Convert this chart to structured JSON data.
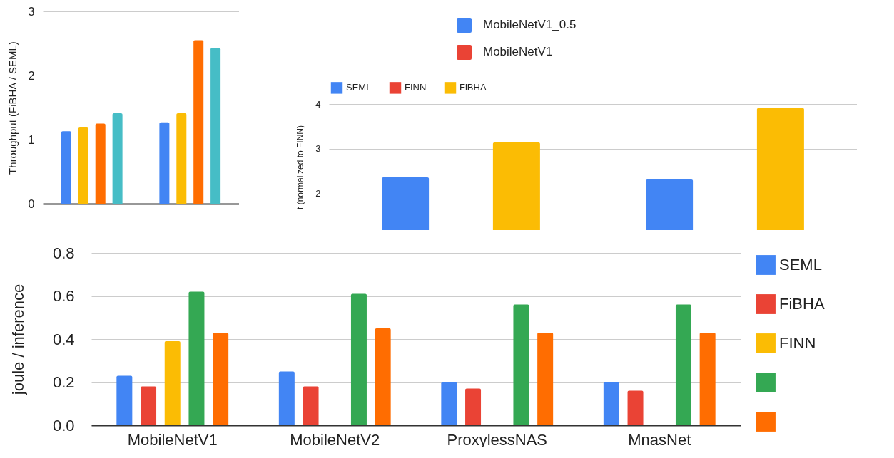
{
  "chart_data": [
    {
      "type": "bar",
      "ylabel": "Throughput (FiBHA / SEML)",
      "categories": [
        null,
        null
      ],
      "series": [
        {
          "color": "#4285f4",
          "values": [
            1.13,
            1.27
          ]
        },
        {
          "color": "#fbbc04",
          "values": [
            1.19,
            1.41
          ]
        },
        {
          "color": "#ff6d01",
          "values": [
            1.25,
            2.55
          ]
        },
        {
          "color": "#46bdc6",
          "values": [
            1.41,
            2.43
          ]
        }
      ],
      "ylim": [
        0,
        3
      ],
      "yticks": [
        0,
        1,
        2,
        3
      ],
      "grid": "y"
    },
    {
      "type": "other",
      "annotations": [
        "MobileNetV1_0.5",
        "MobileNetV1"
      ],
      "colors": [
        "#4285f4",
        "#ea4335"
      ]
    },
    {
      "type": "bar",
      "ylabel": "t (normalized to FINN)",
      "categories": [
        null,
        null
      ],
      "series": [
        {
          "name": "SEML",
          "color": "#4285f4",
          "values": [
            2.36,
            2.31
          ]
        },
        {
          "name": "FINN",
          "color": "#ea4335",
          "values": [
            null,
            null
          ]
        },
        {
          "name": "FiBHA",
          "color": "#fbbc04",
          "values": [
            3.14,
            3.91
          ]
        }
      ],
      "ylim": [
        1.18,
        4
      ],
      "yticks": [
        2,
        3,
        4
      ],
      "grid": "y",
      "legend": "top",
      "tick_labels": "y"
    },
    {
      "type": "bar",
      "ylabel": "joule / inference",
      "categories": [
        "MobileNetV1",
        "MobileNetV2",
        "ProxylessNAS",
        "MnasNet"
      ],
      "series": [
        {
          "name": "SEML",
          "color": "#4285f4",
          "values": [
            0.23,
            0.25,
            0.2,
            0.2
          ]
        },
        {
          "name": "FiBHA",
          "color": "#ea4335",
          "values": [
            0.18,
            0.18,
            0.17,
            0.16
          ]
        },
        {
          "name": "FINN",
          "color": "#fbbc04",
          "values": [
            0.39,
            null,
            null,
            null
          ]
        },
        {
          "color": "#34a853",
          "values": [
            0.62,
            0.61,
            0.56,
            0.56
          ]
        },
        {
          "color": "#ff6d01",
          "values": [
            0.43,
            0.45,
            0.43,
            0.43
          ]
        }
      ],
      "ylim": [
        0,
        0.8
      ],
      "yticks": [
        {
          "value": 0,
          "label": "0.0"
        },
        0.2,
        0.4,
        0.6,
        0.8
      ],
      "grid": "y",
      "legend": "right"
    }
  ]
}
